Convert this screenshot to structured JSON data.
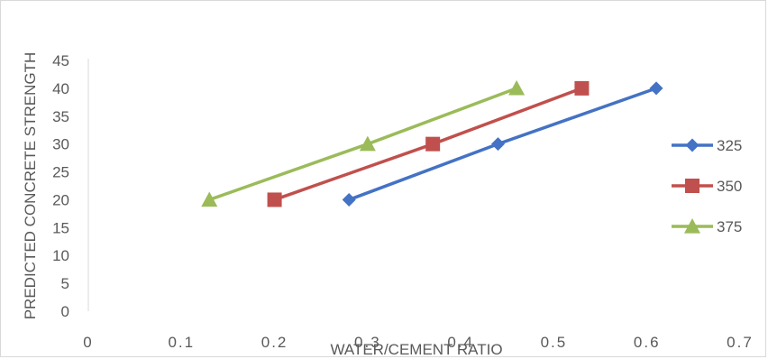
{
  "chart_data": {
    "type": "line",
    "title": "",
    "xlabel": "WATER/CEMENT RATIO",
    "ylabel": "PREDICTED CONCRETE STRENGTH",
    "xlim": [
      0,
      0.7
    ],
    "ylim": [
      0,
      45
    ],
    "x_ticks": [
      "0",
      "0.1",
      "0.2",
      "0.3",
      "0.4",
      "0.5",
      "0.6",
      "0.7"
    ],
    "y_ticks": [
      "0",
      "5",
      "10",
      "15",
      "20",
      "25",
      "30",
      "35",
      "40",
      "45"
    ],
    "grid": false,
    "legend_position": "right",
    "series": [
      {
        "name": "325",
        "color": "#4472c4",
        "marker": "diamond",
        "points": [
          {
            "x": 0.28,
            "y": 20
          },
          {
            "x": 0.44,
            "y": 30
          },
          {
            "x": 0.61,
            "y": 40
          }
        ]
      },
      {
        "name": "350",
        "color": "#c0504d",
        "marker": "square",
        "points": [
          {
            "x": 0.2,
            "y": 20
          },
          {
            "x": 0.37,
            "y": 30
          },
          {
            "x": 0.53,
            "y": 40
          }
        ]
      },
      {
        "name": "375",
        "color": "#9bbb59",
        "marker": "triangle",
        "points": [
          {
            "x": 0.13,
            "y": 20
          },
          {
            "x": 0.3,
            "y": 30
          },
          {
            "x": 0.46,
            "y": 40
          }
        ]
      }
    ]
  }
}
